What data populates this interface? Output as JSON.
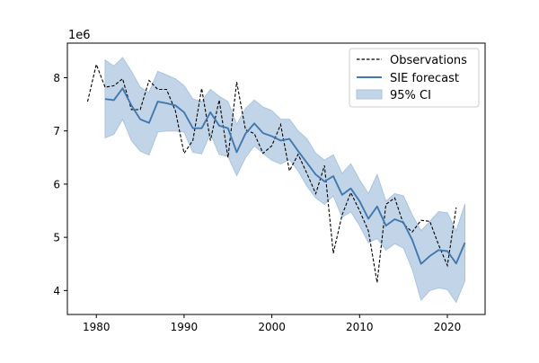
{
  "chart_data": {
    "type": "line",
    "xlim": [
      1976.7,
      2024.3
    ],
    "ylim": [
      3.55,
      8.65
    ],
    "y_multiplier_label": "1e6",
    "x_ticks": [
      1980,
      1990,
      2000,
      2010,
      2020
    ],
    "x_tick_labels": [
      "1980",
      "1990",
      "2000",
      "2010",
      "2020"
    ],
    "y_ticks": [
      4,
      5,
      6,
      7,
      8
    ],
    "y_tick_labels": [
      "4",
      "5",
      "6",
      "7",
      "8"
    ],
    "grid": false,
    "legend_placement": "top-right",
    "legend": {
      "observations": "Observations",
      "forecast": "SIE forecast",
      "ci": "95% CI"
    },
    "colors": {
      "observations": "#000000",
      "forecast": "#4178b0",
      "ci_fill": "#c2d5e8",
      "ci_edge": "#aac4de"
    },
    "observations": {
      "x": [
        1979,
        1980,
        1981,
        1982,
        1983,
        1984,
        1985,
        1986,
        1987,
        1988,
        1989,
        1990,
        1991,
        1992,
        1993,
        1994,
        1995,
        1996,
        1997,
        1998,
        1999,
        2000,
        2001,
        2002,
        2003,
        2004,
        2005,
        2006,
        2007,
        2008,
        2009,
        2010,
        2011,
        2012,
        2013,
        2014,
        2015,
        2016,
        2017,
        2018,
        2019,
        2020,
        2021
      ],
      "y": [
        7.55,
        8.25,
        7.82,
        7.85,
        7.98,
        7.4,
        7.4,
        7.95,
        7.78,
        7.78,
        7.38,
        6.58,
        6.82,
        7.8,
        6.82,
        7.58,
        6.5,
        7.92,
        7.02,
        6.95,
        6.58,
        6.72,
        7.12,
        6.25,
        6.56,
        6.2,
        5.82,
        6.35,
        4.7,
        5.42,
        5.84,
        5.5,
        5.12,
        4.15,
        5.62,
        5.74,
        5.25,
        5.1,
        5.32,
        5.3,
        4.86,
        4.47,
        5.56
      ]
    },
    "forecast": {
      "x": [
        1981,
        1982,
        1983,
        1984,
        1985,
        1986,
        1987,
        1988,
        1989,
        1990,
        1991,
        1992,
        1993,
        1994,
        1995,
        1996,
        1997,
        1998,
        1999,
        2000,
        2001,
        2002,
        2003,
        2004,
        2005,
        2006,
        2007,
        2008,
        2009,
        2010,
        2011,
        2012,
        2013,
        2014,
        2015,
        2016,
        2017,
        2018,
        2019,
        2020,
        2021,
        2022
      ],
      "y": [
        7.6,
        7.58,
        7.8,
        7.48,
        7.22,
        7.15,
        7.55,
        7.52,
        7.48,
        7.35,
        7.05,
        7.05,
        7.35,
        7.1,
        7.05,
        6.6,
        6.95,
        7.14,
        6.96,
        6.9,
        6.82,
        6.85,
        6.62,
        6.4,
        6.18,
        6.05,
        6.15,
        5.8,
        5.92,
        5.68,
        5.35,
        5.58,
        5.22,
        5.34,
        5.28,
        4.95,
        4.5,
        4.65,
        4.76,
        4.74,
        4.51,
        4.9
      ]
    },
    "ci": {
      "x": [
        1981,
        1982,
        1983,
        1984,
        1985,
        1986,
        1987,
        1988,
        1989,
        1990,
        1991,
        1992,
        1993,
        1994,
        1995,
        1996,
        1997,
        1998,
        1999,
        2000,
        2001,
        2002,
        2003,
        2004,
        2005,
        2006,
        2007,
        2008,
        2009,
        2010,
        2011,
        2012,
        2013,
        2014,
        2015,
        2016,
        2017,
        2018,
        2019,
        2020,
        2021,
        2022
      ],
      "upper": [
        8.33,
        8.22,
        8.38,
        8.12,
        7.82,
        7.72,
        8.12,
        8.05,
        7.98,
        7.85,
        7.6,
        7.55,
        7.78,
        7.65,
        7.55,
        7.12,
        7.42,
        7.58,
        7.45,
        7.38,
        7.22,
        7.22,
        7.0,
        6.85,
        6.58,
        6.45,
        6.55,
        6.2,
        6.38,
        6.08,
        5.82,
        6.18,
        5.68,
        5.82,
        5.78,
        5.42,
        5.12,
        5.3,
        5.48,
        5.46,
        5.12,
        5.62
      ],
      "lower": [
        6.87,
        6.94,
        7.22,
        6.82,
        6.62,
        6.55,
        6.98,
        7.0,
        7.0,
        6.98,
        6.6,
        6.57,
        6.95,
        6.56,
        6.52,
        6.16,
        6.5,
        6.72,
        6.58,
        6.45,
        6.38,
        6.46,
        6.25,
        5.96,
        5.74,
        5.62,
        5.78,
        5.38,
        5.48,
        5.22,
        4.9,
        4.98,
        4.76,
        4.88,
        4.8,
        4.4,
        3.82,
        4.0,
        4.05,
        4.02,
        3.78,
        4.18
      ]
    }
  }
}
